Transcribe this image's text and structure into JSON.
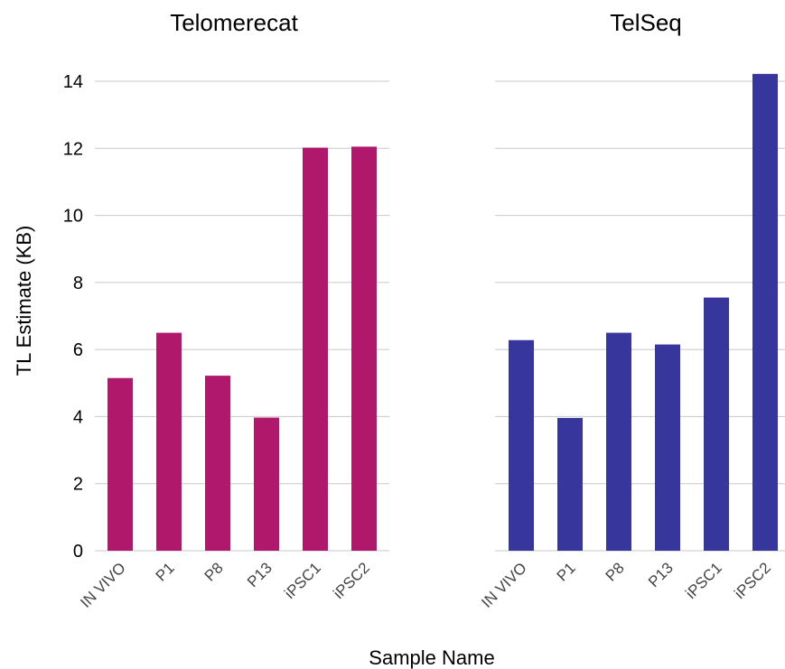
{
  "chart_data": {
    "type": "bar",
    "xlabel": "Sample Name",
    "ylabel": "TL Estimate (KB)",
    "ylim": [
      0,
      14
    ],
    "yticks": [
      0,
      2,
      4,
      6,
      8,
      10,
      12,
      14
    ],
    "grid": true,
    "categories": [
      "IN VIVO",
      "P1",
      "P8",
      "P13",
      "iPSC1",
      "iPSC2"
    ],
    "panels": [
      {
        "title": "Telomerecat",
        "color": "#b0186b",
        "values": [
          5.15,
          6.5,
          5.22,
          3.97,
          12.02,
          12.05
        ]
      },
      {
        "title": "TelSeq",
        "color": "#36369c",
        "values": [
          6.28,
          3.96,
          6.5,
          6.15,
          7.55,
          14.22
        ]
      }
    ]
  }
}
